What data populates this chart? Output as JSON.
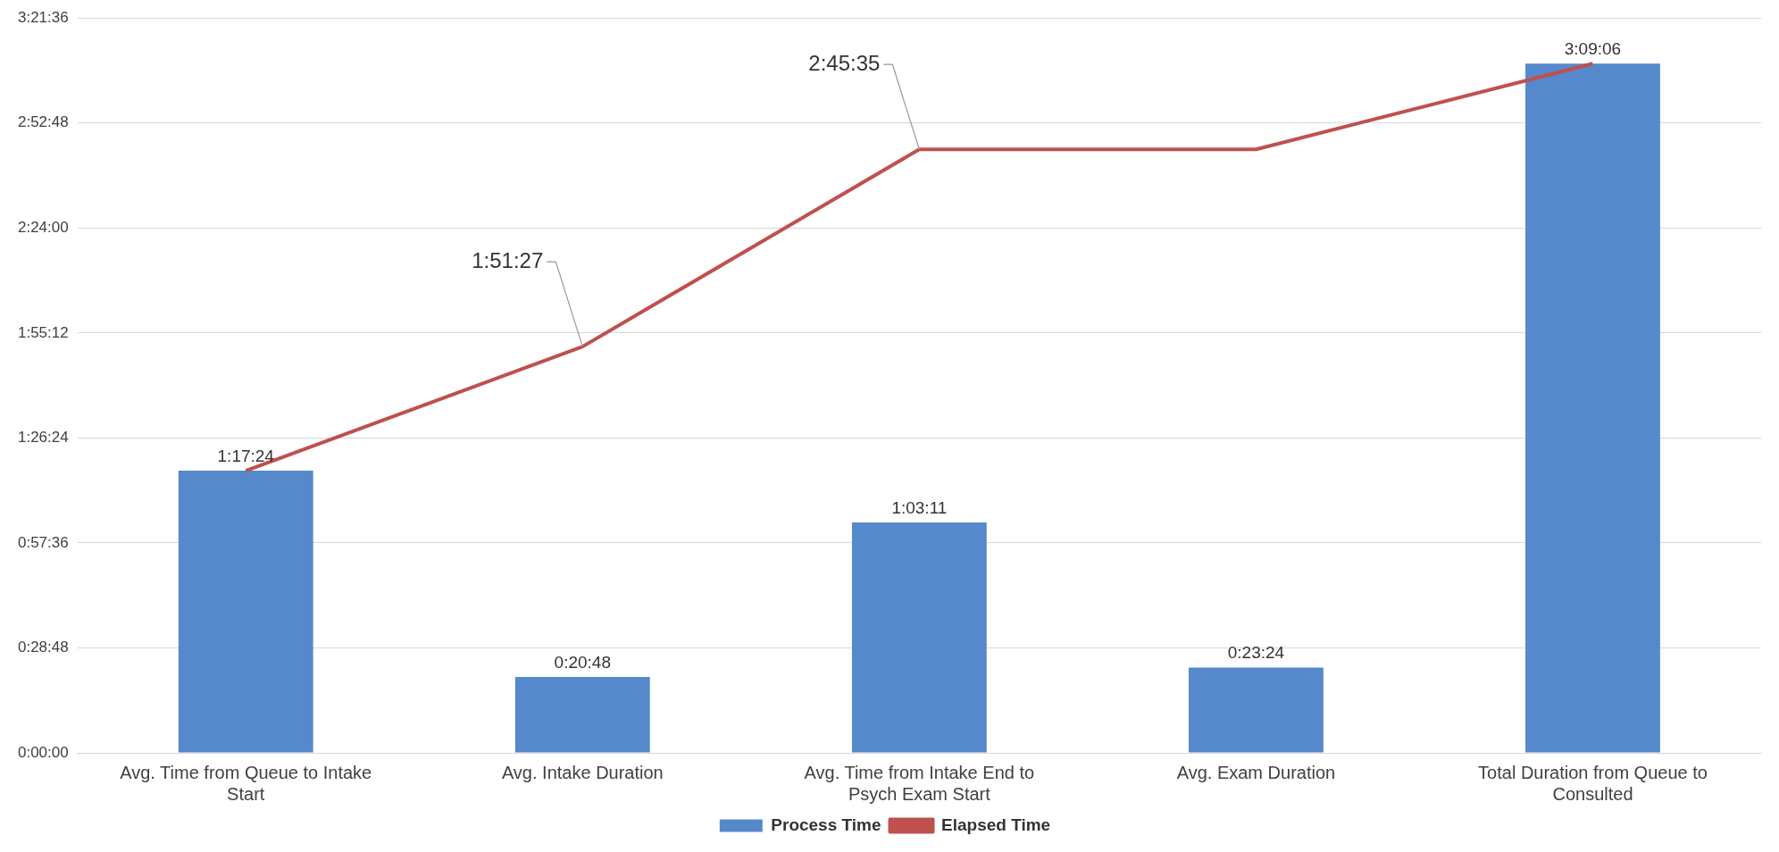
{
  "chart_data": {
    "type": "bar",
    "categories": [
      "Avg. Time from Queue to Intake Start",
      "Avg. Intake Duration",
      "Avg. Time from Intake End to Psych Exam Start",
      "Avg. Exam Duration",
      "Total Duration from Queue to Consulted"
    ],
    "series": [
      {
        "name": "Process Time",
        "color": "#5589cb",
        "values": [
          1.29,
          0.3467,
          1.0531,
          0.39,
          3.1517
        ],
        "value_labels": [
          "1:17:24",
          "0:20:48",
          "1:03:11",
          "0:23:24",
          "3:09:06"
        ]
      },
      {
        "name": "Elapsed Time",
        "type": "line",
        "color": "#c0504d",
        "values": [
          1.29,
          1.8575,
          2.7597,
          2.7597,
          3.1517
        ],
        "value_labels": [
          null,
          "1:51:27",
          "2:45:35",
          null,
          null
        ]
      }
    ],
    "ylim": [
      0,
      3.36
    ],
    "yticks": [
      {
        "value": 0,
        "label": "0:00:00"
      },
      {
        "value": 0.48,
        "label": "0:28:48"
      },
      {
        "value": 0.96,
        "label": "0:57:36"
      },
      {
        "value": 1.44,
        "label": "1:26:24"
      },
      {
        "value": 1.92,
        "label": "1:55:12"
      },
      {
        "value": 2.4,
        "label": "2:24:00"
      },
      {
        "value": 2.88,
        "label": "2:52:48"
      },
      {
        "value": 3.36,
        "label": "3:21:36"
      }
    ],
    "grid": "y",
    "legend": "bottom",
    "marker": "none",
    "line_style": "solid"
  }
}
